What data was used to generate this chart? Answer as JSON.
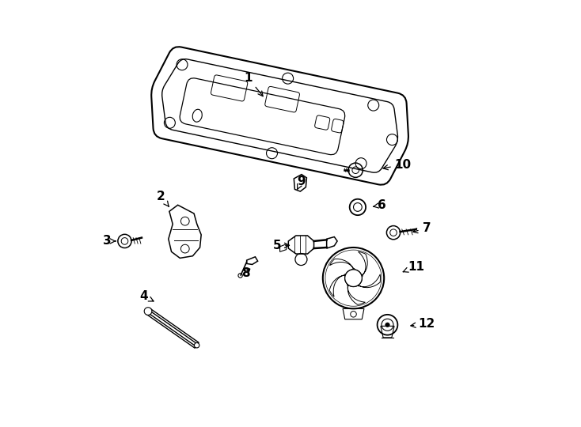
{
  "background_color": "#ffffff",
  "line_color": "#000000",
  "label_color": "#000000",
  "labels": [
    {
      "num": "1",
      "lpos": [
        0.4,
        0.82
      ],
      "aend": [
        0.44,
        0.77
      ]
    },
    {
      "num": "2",
      "lpos": [
        0.195,
        0.54
      ],
      "aend": [
        0.215,
        0.515
      ]
    },
    {
      "num": "3",
      "lpos": [
        0.068,
        0.435
      ],
      "aend": [
        0.095,
        0.435
      ]
    },
    {
      "num": "4",
      "lpos": [
        0.155,
        0.305
      ],
      "aend": [
        0.185,
        0.29
      ]
    },
    {
      "num": "5",
      "lpos": [
        0.468,
        0.425
      ],
      "aend": [
        0.505,
        0.425
      ]
    },
    {
      "num": "6",
      "lpos": [
        0.715,
        0.52
      ],
      "aend": [
        0.688,
        0.515
      ]
    },
    {
      "num": "7",
      "lpos": [
        0.82,
        0.465
      ],
      "aend": [
        0.78,
        0.455
      ]
    },
    {
      "num": "8",
      "lpos": [
        0.395,
        0.36
      ],
      "aend": [
        0.41,
        0.375
      ]
    },
    {
      "num": "9",
      "lpos": [
        0.525,
        0.575
      ],
      "aend": [
        0.515,
        0.555
      ]
    },
    {
      "num": "10",
      "lpos": [
        0.765,
        0.615
      ],
      "aend": [
        0.71,
        0.605
      ]
    },
    {
      "num": "11",
      "lpos": [
        0.795,
        0.375
      ],
      "aend": [
        0.758,
        0.36
      ]
    },
    {
      "num": "12",
      "lpos": [
        0.82,
        0.24
      ],
      "aend": [
        0.775,
        0.235
      ]
    }
  ]
}
